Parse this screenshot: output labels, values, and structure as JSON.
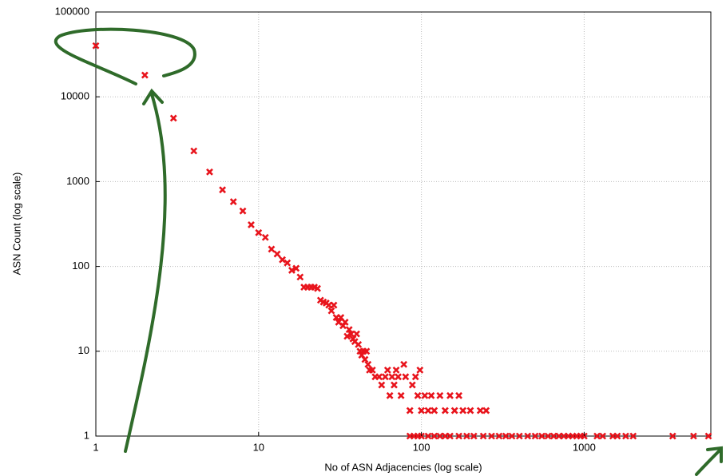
{
  "chart_data": {
    "type": "scatter",
    "x_label": "No of ASN Adjacencies (log scale)",
    "y_label": "ASN Count (log scale)",
    "color": "#e8141c",
    "x_scale": "log",
    "y_scale": "log",
    "grid": true,
    "xlim": [
      1,
      6000
    ],
    "ylim": [
      1,
      100000
    ],
    "xticks": [
      1,
      10,
      100,
      1000
    ],
    "yticks": [
      1,
      10,
      100,
      1000,
      10000,
      100000
    ],
    "x": [
      1,
      2,
      3,
      4,
      5,
      6,
      7,
      8,
      9,
      10,
      11,
      12,
      13,
      14,
      15,
      16,
      17,
      18,
      19,
      20,
      21,
      22,
      23,
      24,
      25,
      26,
      27,
      28,
      29,
      30,
      31,
      32,
      33,
      34,
      35,
      36,
      37,
      38,
      39,
      40,
      41,
      42,
      43,
      44,
      45,
      46,
      47,
      48,
      50,
      52,
      55,
      57,
      60,
      62,
      64,
      66,
      68,
      70,
      72,
      75,
      78,
      80,
      85,
      88,
      92,
      95,
      98,
      100,
      105,
      110,
      115,
      120,
      130,
      140,
      150,
      160,
      170,
      180,
      200,
      230,
      250,
      85,
      90,
      95,
      100,
      110,
      120,
      130,
      140,
      150,
      170,
      190,
      210,
      240,
      270,
      300,
      330,
      360,
      400,
      450,
      500,
      550,
      600,
      650,
      700,
      750,
      800,
      850,
      900,
      950,
      1000,
      1200,
      1300,
      1500,
      1600,
      1800,
      2000,
      3500,
      4700,
      5800
    ],
    "values": [
      40000,
      18000,
      5600,
      2300,
      1300,
      800,
      580,
      450,
      310,
      250,
      220,
      160,
      140,
      120,
      110,
      90,
      95,
      75,
      57,
      57,
      57,
      57,
      55,
      40,
      38,
      37,
      35,
      30,
      35,
      25,
      22,
      25,
      20,
      22,
      15,
      18,
      16,
      14,
      13,
      16,
      12,
      10,
      9,
      10,
      8,
      10,
      7,
      6,
      6,
      5,
      5,
      4,
      5,
      6,
      3,
      5,
      4,
      6,
      5,
      3,
      7,
      5,
      2,
      4,
      5,
      3,
      6,
      2,
      3,
      2,
      3,
      2,
      3,
      2,
      3,
      2,
      3,
      2,
      2,
      2,
      2,
      1,
      1,
      1,
      1,
      1,
      1,
      1,
      1,
      1,
      1,
      1,
      1,
      1,
      1,
      1,
      1,
      1,
      1,
      1,
      1,
      1,
      1,
      1,
      1,
      1,
      1,
      1,
      1,
      1,
      1,
      1,
      1,
      1,
      1,
      1,
      1,
      1,
      1,
      1
    ]
  }
}
